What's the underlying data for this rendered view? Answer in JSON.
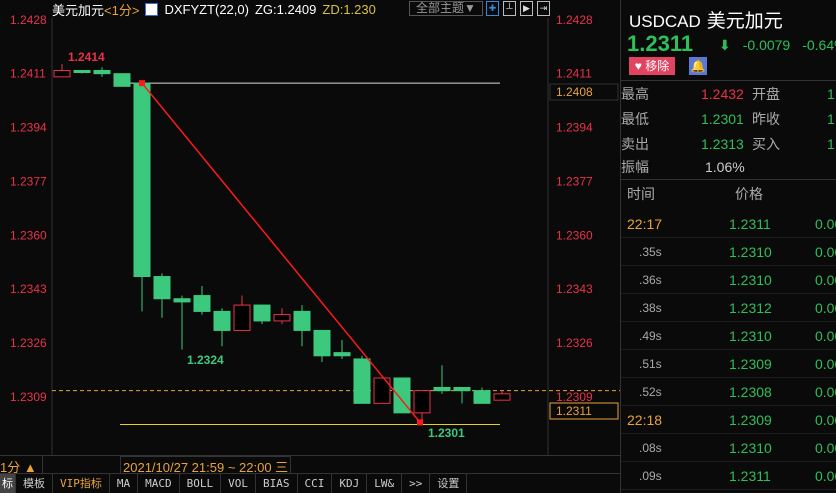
{
  "header": {
    "symbol": "美元加元",
    "period": "<1分>",
    "indicator": "DXFYZT(22,0)",
    "zg": "ZG:1.2409",
    "zd": "ZD:1.230",
    "theme_button": "全部主题▼"
  },
  "axis": {
    "labels": [
      "1.2428",
      "1.2411",
      "1.2394",
      "1.2377",
      "1.2360",
      "1.2343",
      "1.2326",
      "1.2309"
    ],
    "ref_price": "1.2408",
    "last_price": "1.2311"
  },
  "chart_data": {
    "type": "candlestick",
    "ylim": [
      1.23,
      1.2428
    ],
    "candles": [
      [
        1.241,
        1.2412,
        1.2414,
        1.241
      ],
      [
        1.2412,
        1.2412,
        1.2412,
        1.2411
      ],
      [
        1.2412,
        1.2411,
        1.2413,
        1.241
      ],
      [
        1.2411,
        1.2407,
        1.2411,
        1.2407
      ],
      [
        1.2408,
        1.2347,
        1.2408,
        1.2336
      ],
      [
        1.2347,
        1.234,
        1.2348,
        1.2334
      ],
      [
        1.234,
        1.2339,
        1.2341,
        1.2324
      ],
      [
        1.2341,
        1.2336,
        1.2344,
        1.2335
      ],
      [
        1.2336,
        1.233,
        1.2337,
        1.2325
      ],
      [
        1.233,
        1.2338,
        1.2341,
        1.233
      ],
      [
        1.2338,
        1.2333,
        1.2338,
        1.2332
      ],
      [
        1.2333,
        1.2335,
        1.2337,
        1.2332
      ],
      [
        1.2336,
        1.233,
        1.2338,
        1.2325
      ],
      [
        1.233,
        1.2322,
        1.233,
        1.232
      ],
      [
        1.2323,
        1.2322,
        1.2327,
        1.2321
      ],
      [
        1.2321,
        1.2307,
        1.2322,
        1.2307
      ],
      [
        1.2307,
        1.2315,
        1.2315,
        1.2307
      ],
      [
        1.2315,
        1.2304,
        1.2315,
        1.2304
      ],
      [
        1.2304,
        1.2311,
        1.2311,
        1.2301
      ],
      [
        1.2312,
        1.2311,
        1.2319,
        1.231
      ],
      [
        1.2312,
        1.2311,
        1.2312,
        1.2307
      ],
      [
        1.2311,
        1.2307,
        1.2312,
        1.2307
      ],
      [
        1.2308,
        1.231,
        1.2311,
        1.2308
      ]
    ],
    "candle_format": [
      "open",
      "close",
      "high",
      "low"
    ],
    "annotations": {
      "high_label": "1.2414",
      "low_label": "1.2324",
      "min_label": "1.2301"
    },
    "hlines": [
      1.2408,
      1.23,
      1.2311
    ],
    "trendline": [
      [
        1.2408,
        1.2301
      ]
    ],
    "colors": {
      "up": "#e8324a",
      "down": "#3cc97e",
      "trend": "#ff1a1a"
    }
  },
  "bottom": {
    "period": "1分 ▲",
    "time_range": "2021/10/27 21:59 ~ 22:00 三",
    "tabs": [
      "标",
      "模板",
      "VIP指标",
      "MA",
      "MACD",
      "BOLL",
      "VOL",
      "BIAS",
      "CCI",
      "KDJ",
      "LW&",
      ">>",
      "设置"
    ]
  },
  "panel": {
    "code": "USDCAD",
    "name": "美元加元",
    "price": "1.2311",
    "arrow": "⬇",
    "change": "-0.0079",
    "pct": "-0.64%",
    "remove": "移除",
    "stats": [
      {
        "l": "最高",
        "v": "1.2432",
        "c": "red",
        "l2": "开盘",
        "v2": "1."
      },
      {
        "l": "最低",
        "v": "1.2301",
        "c": "grn",
        "l2": "昨收",
        "v2": "1."
      },
      {
        "l": "卖出",
        "v": "1.2313",
        "c": "grn",
        "l2": "买入",
        "v2": "1."
      }
    ],
    "amp_label": "振幅",
    "amp": "1.06%",
    "col_time": "时间",
    "col_price": "价格",
    "ticks": [
      {
        "t": "22:17",
        "p": "1.2311",
        "v": "0.00"
      },
      {
        "t": ".35s",
        "p": "1.2310",
        "v": "0.00"
      },
      {
        "t": ".36s",
        "p": "1.2310",
        "v": "0.00"
      },
      {
        "t": ".38s",
        "p": "1.2312",
        "v": "0.00"
      },
      {
        "t": ".49s",
        "p": "1.2310",
        "v": "0.00"
      },
      {
        "t": ".51s",
        "p": "1.2309",
        "v": "0.00"
      },
      {
        "t": ".52s",
        "p": "1.2308",
        "v": "0.00"
      },
      {
        "t": "22:18",
        "p": "1.2309",
        "v": "0.00"
      },
      {
        "t": ".08s",
        "p": "1.2310",
        "v": "0.00"
      },
      {
        "t": ".09s",
        "p": "1.2311",
        "v": "0.00"
      }
    ]
  }
}
